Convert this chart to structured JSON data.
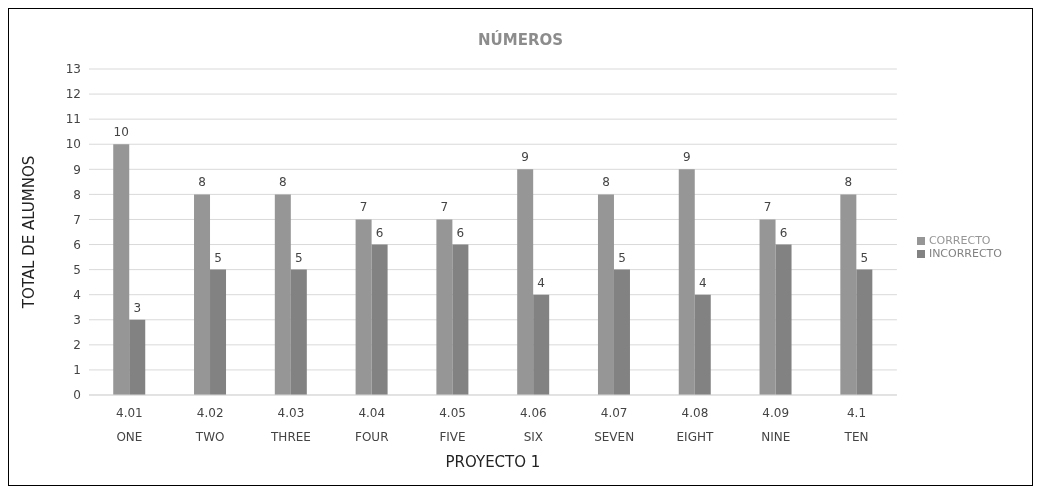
{
  "chart_data": {
    "type": "bar",
    "title": "NÚMEROS",
    "xlabel": "PROYECTO 1",
    "ylabel": "TOTAL DE ALUMNOS",
    "categories": [
      "4.01\nONE",
      "4.02\nTWO",
      "4.03\nTHREE",
      "4.04\nFOUR",
      "4.05\nFIVE",
      "4.06\nSIX",
      "4.07\nSEVEN",
      "4.08\nEIGHT",
      "4.09\nNINE",
      "4.1\nTEN"
    ],
    "series": [
      {
        "name": "CORRECTO",
        "color": "#969696",
        "values": [
          10,
          8,
          8,
          7,
          7,
          9,
          8,
          9,
          7,
          8
        ]
      },
      {
        "name": "INCORRECTO",
        "color": "#828282",
        "values": [
          3,
          5,
          5,
          6,
          6,
          4,
          5,
          4,
          6,
          5
        ]
      }
    ],
    "ylim": [
      0,
      13
    ],
    "yticks": [
      0,
      1,
      2,
      3,
      4,
      5,
      6,
      7,
      8,
      9,
      10,
      11,
      12,
      13
    ],
    "grid": "y",
    "legend": "right",
    "data_labels": true
  }
}
